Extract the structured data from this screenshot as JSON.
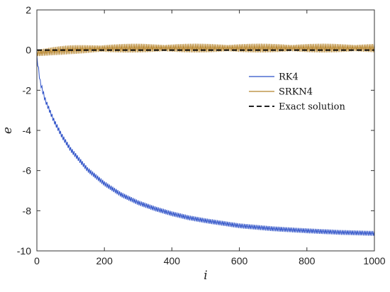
{
  "chart_data": {
    "type": "line",
    "title": "",
    "xlabel": "i",
    "ylabel": "e",
    "xlim": [
      0,
      1000
    ],
    "ylim": [
      -10,
      2
    ],
    "xticks": [
      0,
      200,
      400,
      600,
      800,
      1000
    ],
    "yticks": [
      -10,
      -8,
      -6,
      -4,
      -2,
      0,
      2
    ],
    "grid": false,
    "legend_position": "right",
    "series": [
      {
        "name": "RK4",
        "color": "#2b4fc7",
        "style": "solid",
        "oscillation_amplitude": 0.12,
        "x": [
          0,
          10,
          25,
          50,
          75,
          100,
          150,
          200,
          250,
          300,
          350,
          400,
          450,
          500,
          600,
          700,
          800,
          900,
          1000
        ],
        "y": [
          -0.35,
          -1.6,
          -2.5,
          -3.5,
          -4.3,
          -4.95,
          -5.95,
          -6.65,
          -7.2,
          -7.6,
          -7.9,
          -8.15,
          -8.35,
          -8.5,
          -8.75,
          -8.9,
          -9.0,
          -9.08,
          -9.13
        ]
      },
      {
        "name": "SRKN4",
        "color": "#b5832a",
        "style": "solid",
        "oscillation_amplitude": 0.22,
        "x": [
          0,
          50,
          100,
          200,
          300,
          400,
          500,
          600,
          700,
          800,
          900,
          1000
        ],
        "y": [
          -0.15,
          -0.05,
          0.02,
          0.08,
          0.1,
          0.1,
          0.1,
          0.1,
          0.1,
          0.1,
          0.1,
          0.1
        ]
      },
      {
        "name": "Exact solution",
        "color": "#000000",
        "style": "dashed",
        "oscillation_amplitude": 0,
        "x": [
          0,
          1000
        ],
        "y": [
          0,
          0
        ]
      }
    ]
  }
}
